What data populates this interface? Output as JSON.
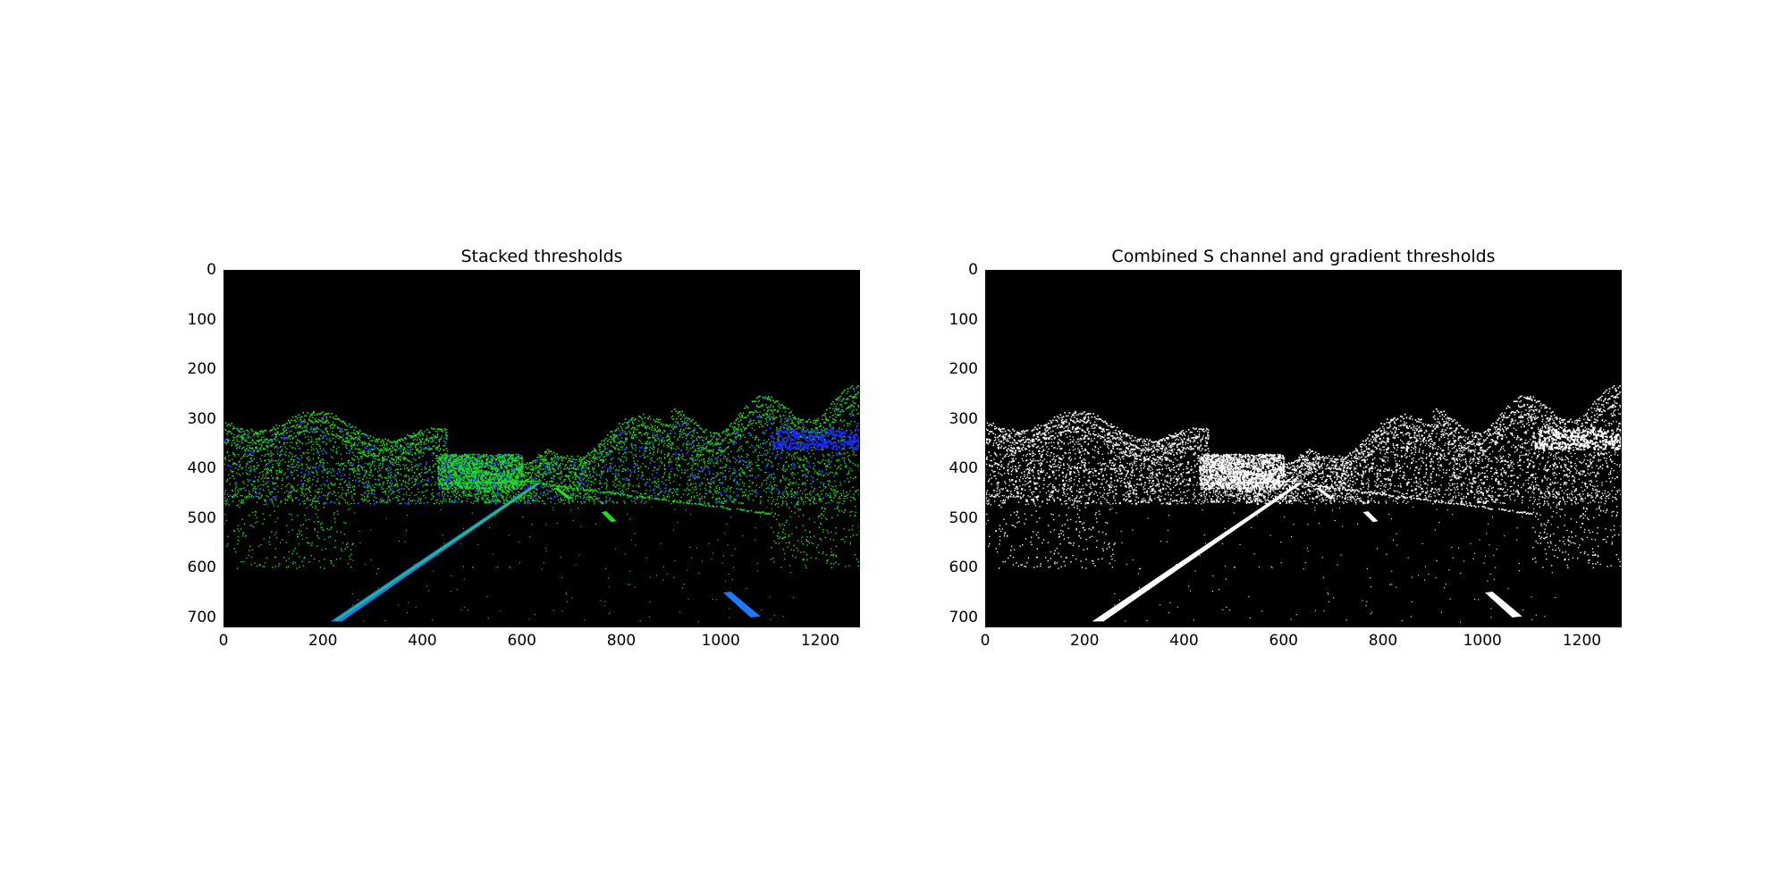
{
  "figure": {
    "panels": [
      {
        "title": "Stacked thresholds",
        "mode": "stacked",
        "colors": {
          "background": "#000000",
          "gradient": "#22dd22",
          "s_channel": "#1a2bff",
          "lane": "#1a7bff"
        },
        "x_ticks": [
          "0",
          "200",
          "400",
          "600",
          "800",
          "1000",
          "1200"
        ],
        "y_ticks": [
          "0",
          "100",
          "200",
          "300",
          "400",
          "500",
          "600",
          "700"
        ],
        "xlim": [
          0,
          1280
        ],
        "ylim": [
          720,
          0
        ]
      },
      {
        "title": "Combined S channel and gradient thresholds",
        "mode": "combined",
        "colors": {
          "background": "#000000",
          "gradient": "#ffffff",
          "s_channel": "#ffffff",
          "lane": "#ffffff"
        },
        "x_ticks": [
          "0",
          "200",
          "400",
          "600",
          "800",
          "1000",
          "1200"
        ],
        "y_ticks": [
          "0",
          "100",
          "200",
          "300",
          "400",
          "500",
          "600",
          "700"
        ],
        "xlim": [
          0,
          1280
        ],
        "ylim": [
          720,
          0
        ]
      }
    ]
  }
}
